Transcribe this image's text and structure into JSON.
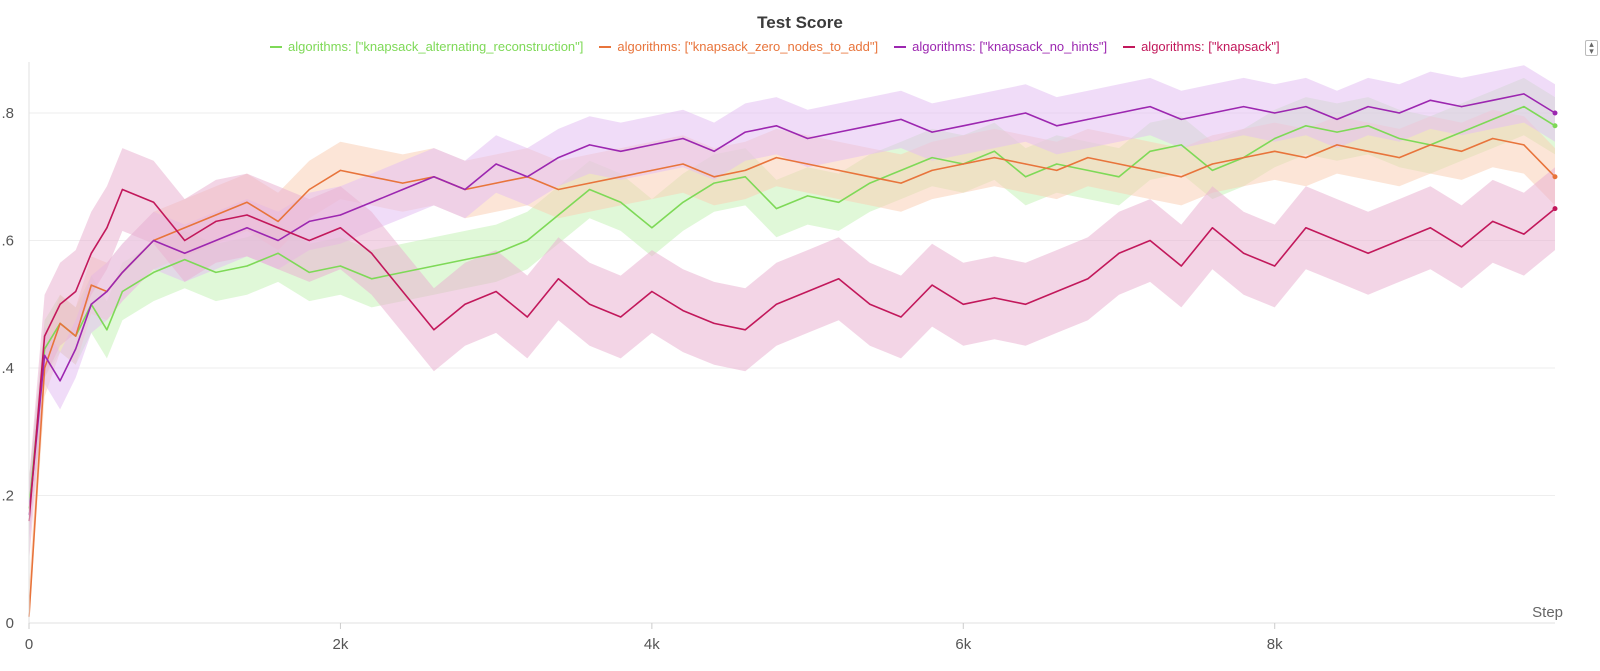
{
  "chart_data": {
    "type": "line",
    "title": "Test Score",
    "xlabel": "Step",
    "ylabel": "",
    "xlim": [
      0,
      9800
    ],
    "ylim": [
      0,
      0.88
    ],
    "x_ticks": [
      {
        "value": 0,
        "label": "0"
      },
      {
        "value": 2000,
        "label": "2k"
      },
      {
        "value": 4000,
        "label": "4k"
      },
      {
        "value": 6000,
        "label": "6k"
      },
      {
        "value": 8000,
        "label": "8k"
      }
    ],
    "y_ticks": [
      {
        "value": 0,
        "label": "0"
      },
      {
        "value": 0.2,
        "label": ".2"
      },
      {
        "value": 0.4,
        "label": ".4"
      },
      {
        "value": 0.6,
        "label": ".6"
      },
      {
        "value": 0.8,
        "label": ".8"
      }
    ],
    "grid": true,
    "legend_position": "top",
    "series": [
      {
        "name": "algorithms: [\"knapsack_alternating_reconstruction\"]",
        "color": "#7ed957",
        "band_color": "#c6f2b8",
        "x": [
          0,
          100,
          200,
          300,
          400,
          500,
          600,
          800,
          1000,
          1200,
          1400,
          1600,
          1800,
          2000,
          2200,
          2400,
          2600,
          2800,
          3000,
          3200,
          3400,
          3600,
          3800,
          4000,
          4200,
          4400,
          4600,
          4800,
          5000,
          5200,
          5400,
          5600,
          5800,
          6000,
          6200,
          6400,
          6600,
          6800,
          7000,
          7200,
          7400,
          7600,
          7800,
          8000,
          8200,
          8400,
          8600,
          8800,
          9000,
          9200,
          9400,
          9600,
          9800
        ],
        "values": [
          0.18,
          0.43,
          0.47,
          0.45,
          0.5,
          0.46,
          0.52,
          0.55,
          0.57,
          0.55,
          0.56,
          0.58,
          0.55,
          0.56,
          0.54,
          0.55,
          0.56,
          0.57,
          0.58,
          0.6,
          0.64,
          0.68,
          0.66,
          0.62,
          0.66,
          0.69,
          0.7,
          0.65,
          0.67,
          0.66,
          0.69,
          0.71,
          0.73,
          0.72,
          0.74,
          0.7,
          0.72,
          0.71,
          0.7,
          0.74,
          0.75,
          0.71,
          0.73,
          0.76,
          0.78,
          0.77,
          0.78,
          0.76,
          0.75,
          0.77,
          0.79,
          0.81,
          0.78
        ]
      },
      {
        "name": "algorithms: [\"knapsack_zero_nodes_to_add\"]",
        "color": "#e8743b",
        "band_color": "#f9cfb6",
        "x": [
          0,
          100,
          200,
          300,
          400,
          500,
          600,
          800,
          1000,
          1200,
          1400,
          1600,
          1800,
          2000,
          2200,
          2400,
          2600,
          2800,
          3000,
          3200,
          3400,
          3600,
          3800,
          4000,
          4200,
          4400,
          4600,
          4800,
          5000,
          5200,
          5400,
          5600,
          5800,
          6000,
          6200,
          6400,
          6600,
          6800,
          7000,
          7200,
          7400,
          7600,
          7800,
          8000,
          8200,
          8400,
          8600,
          8800,
          9000,
          9200,
          9400,
          9600,
          9800
        ],
        "values": [
          0.01,
          0.4,
          0.47,
          0.45,
          0.53,
          0.52,
          0.55,
          0.6,
          0.62,
          0.64,
          0.66,
          0.63,
          0.68,
          0.71,
          0.7,
          0.69,
          0.7,
          0.68,
          0.69,
          0.7,
          0.68,
          0.69,
          0.7,
          0.71,
          0.72,
          0.7,
          0.71,
          0.73,
          0.72,
          0.71,
          0.7,
          0.69,
          0.71,
          0.72,
          0.73,
          0.72,
          0.71,
          0.73,
          0.72,
          0.71,
          0.7,
          0.72,
          0.73,
          0.74,
          0.73,
          0.75,
          0.74,
          0.73,
          0.75,
          0.74,
          0.76,
          0.75,
          0.7
        ]
      },
      {
        "name": "algorithms: [\"knapsack_no_hints\"]",
        "color": "#9c27b0",
        "band_color": "#e3bff2",
        "x": [
          0,
          100,
          200,
          300,
          400,
          500,
          600,
          800,
          1000,
          1200,
          1400,
          1600,
          1800,
          2000,
          2200,
          2400,
          2600,
          2800,
          3000,
          3200,
          3400,
          3600,
          3800,
          4000,
          4200,
          4400,
          4600,
          4800,
          5000,
          5200,
          5400,
          5600,
          5800,
          6000,
          6200,
          6400,
          6600,
          6800,
          7000,
          7200,
          7400,
          7600,
          7800,
          8000,
          8200,
          8400,
          8600,
          8800,
          9000,
          9200,
          9400,
          9600,
          9800
        ],
        "values": [
          0.17,
          0.42,
          0.38,
          0.43,
          0.5,
          0.52,
          0.55,
          0.6,
          0.58,
          0.6,
          0.62,
          0.6,
          0.63,
          0.64,
          0.66,
          0.68,
          0.7,
          0.68,
          0.72,
          0.7,
          0.73,
          0.75,
          0.74,
          0.75,
          0.76,
          0.74,
          0.77,
          0.78,
          0.76,
          0.77,
          0.78,
          0.79,
          0.77,
          0.78,
          0.79,
          0.8,
          0.78,
          0.79,
          0.8,
          0.81,
          0.79,
          0.8,
          0.81,
          0.8,
          0.81,
          0.79,
          0.81,
          0.8,
          0.82,
          0.81,
          0.82,
          0.83,
          0.8
        ]
      },
      {
        "name": "algorithms: [\"knapsack\"]",
        "color": "#c2185b",
        "band_color": "#eab2d2",
        "x": [
          0,
          100,
          200,
          300,
          400,
          500,
          600,
          800,
          1000,
          1200,
          1400,
          1600,
          1800,
          2000,
          2200,
          2400,
          2600,
          2800,
          3000,
          3200,
          3400,
          3600,
          3800,
          4000,
          4200,
          4400,
          4600,
          4800,
          5000,
          5200,
          5400,
          5600,
          5800,
          6000,
          6200,
          6400,
          6600,
          6800,
          7000,
          7200,
          7400,
          7600,
          7800,
          8000,
          8200,
          8400,
          8600,
          8800,
          9000,
          9200,
          9400,
          9600,
          9800
        ],
        "values": [
          0.16,
          0.45,
          0.5,
          0.52,
          0.58,
          0.62,
          0.68,
          0.66,
          0.6,
          0.63,
          0.64,
          0.62,
          0.6,
          0.62,
          0.58,
          0.52,
          0.46,
          0.5,
          0.52,
          0.48,
          0.54,
          0.5,
          0.48,
          0.52,
          0.49,
          0.47,
          0.46,
          0.5,
          0.52,
          0.54,
          0.5,
          0.48,
          0.53,
          0.5,
          0.51,
          0.5,
          0.52,
          0.54,
          0.58,
          0.6,
          0.56,
          0.62,
          0.58,
          0.56,
          0.62,
          0.6,
          0.58,
          0.6,
          0.62,
          0.59,
          0.63,
          0.61,
          0.65
        ]
      }
    ]
  },
  "ui": {
    "menu_icon": "sort-arrows-icon"
  }
}
